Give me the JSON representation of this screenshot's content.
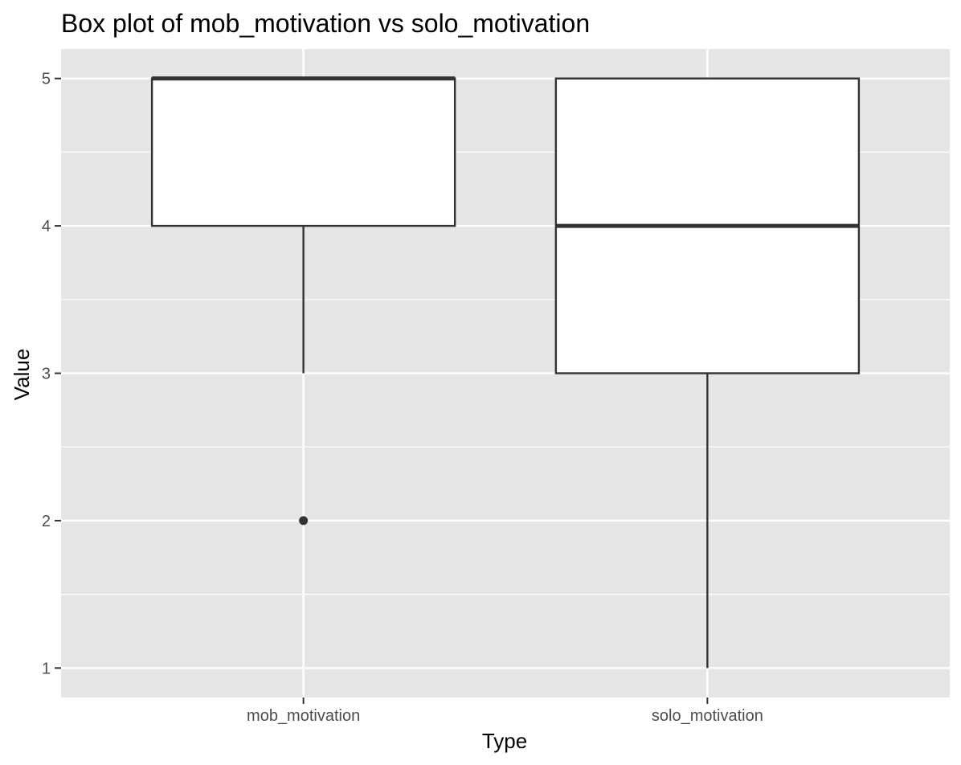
{
  "chart_data": {
    "type": "box",
    "title": "Box plot of mob_motivation vs solo_motivation",
    "xlabel": "Type",
    "ylabel": "Value",
    "categories": [
      "mob_motivation",
      "solo_motivation"
    ],
    "boxes": [
      {
        "category": "mob_motivation",
        "min": 3,
        "q1": 4,
        "median": 5,
        "q3": 5,
        "max": 5,
        "outliers": [
          2
        ]
      },
      {
        "category": "solo_motivation",
        "min": 1,
        "q1": 3,
        "median": 4,
        "q3": 5,
        "max": 5,
        "outliers": []
      }
    ],
    "ylim": [
      0.8,
      5.2
    ],
    "yticks": [
      1,
      2,
      3,
      4,
      5
    ],
    "grid": true,
    "colors": {
      "panel": "#e5e5e5",
      "grid": "#ffffff",
      "box_fill": "#ffffff",
      "stroke": "#333333"
    }
  }
}
